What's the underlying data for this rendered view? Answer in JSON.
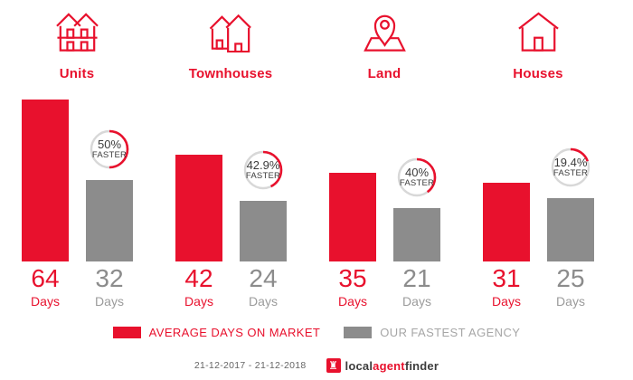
{
  "chart_data": {
    "type": "bar",
    "title": "",
    "categories": [
      "Units",
      "Townhouses",
      "Land",
      "Houses"
    ],
    "series": [
      {
        "name": "AVERAGE DAYS ON MARKET",
        "color": "#e8112d",
        "values": [
          64,
          42,
          35,
          31
        ]
      },
      {
        "name": "OUR FASTEST AGENCY",
        "color": "#8c8c8c",
        "values": [
          32,
          24,
          21,
          25
        ]
      }
    ],
    "unit_label": "Days",
    "faster_badges": [
      "50%",
      "42.9%",
      "40%",
      "19.4%"
    ],
    "faster_fractions": [
      0.5,
      0.429,
      0.4,
      0.194
    ],
    "faster_suffix": "FASTER",
    "icons": [
      "units-icon",
      "townhouses-icon",
      "land-icon",
      "houses-icon"
    ],
    "legend": [
      {
        "label": "AVERAGE DAYS ON MARKET",
        "color": "#e8112d"
      },
      {
        "label": "OUR FASTEST AGENCY",
        "color": "#8c8c8c"
      }
    ],
    "legend_position": "bottom",
    "ylim": [
      0,
      64
    ],
    "grid": false
  },
  "footer": {
    "date_range": "21-12-2017 - 21-12-2018",
    "logo": {
      "part1": "local",
      "part2": "agent",
      "part3": "finder",
      "icon": "rook-icon"
    }
  },
  "colors": {
    "accent_red": "#e8112d",
    "bar_gray": "#8c8c8c",
    "ring_gray": "#d8d8d8",
    "badge_text": "#3b3b3b"
  }
}
